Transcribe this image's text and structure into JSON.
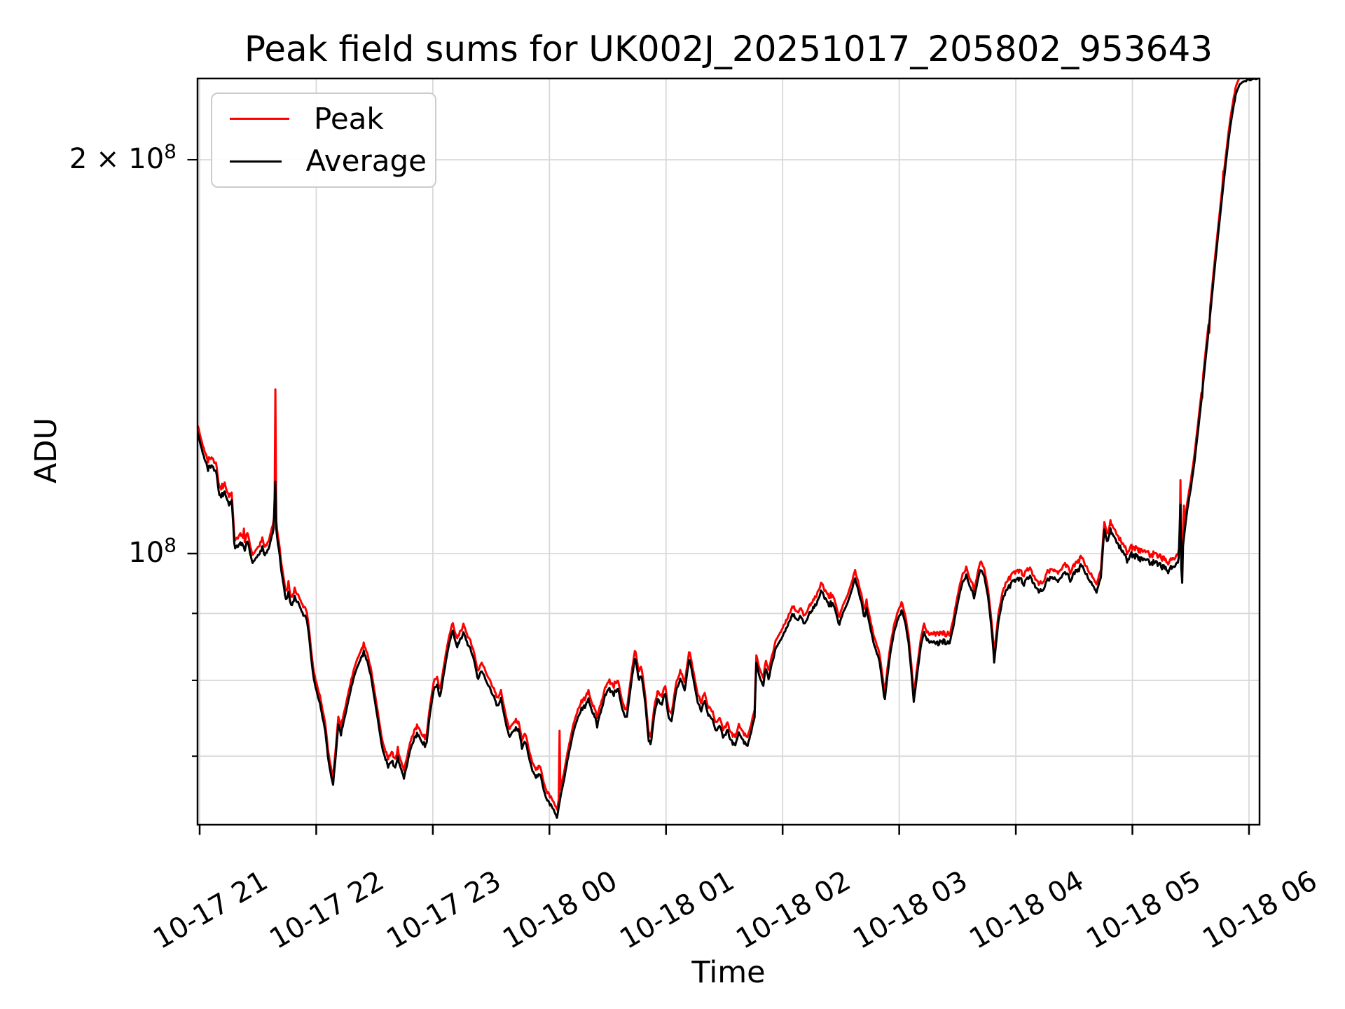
{
  "title": "Peak field sums for UK002J_20251017_205802_953643",
  "xlabel": "Time",
  "ylabel": "ADU",
  "legend": {
    "items": [
      {
        "label": "Peak",
        "color": "#ff0000"
      },
      {
        "label": "Average",
        "color": "#000000"
      }
    ]
  },
  "axes": {
    "x_tick_labels": [
      "10-17 21",
      "10-17 22",
      "10-17 23",
      "10-18 00",
      "10-18 01",
      "10-18 02",
      "10-18 03",
      "10-18 04",
      "10-18 05",
      "10-18 06"
    ],
    "y_ticks": [
      {
        "mantissa": "2 × 10",
        "exponent": "8",
        "value_e7": 20,
        "kind": "minor-labeled"
      },
      {
        "mantissa": "10",
        "exponent": "8",
        "value_e7": 10,
        "kind": "major"
      }
    ],
    "y_minor_ticks_e7": [
      20,
      9,
      8,
      7
    ],
    "y_grid_values_e7": [
      20,
      10,
      9,
      8,
      7
    ],
    "grid_color": "#d9d9d9",
    "spine_color": "#000000",
    "y_scale": "log",
    "y_range_e7": [
      6.22,
      23.1
    ],
    "x_range_hours_from_2100": [
      -0.018,
      9.088
    ]
  },
  "chart_data": {
    "type": "line",
    "title": "Peak field sums for UK002J_20251017_205802_953643",
    "xlabel": "Time",
    "ylabel": "ADU",
    "x_unit": "hours since 2025-10-17 21:00",
    "y_unit": "ADU × 1e7 (log axis, range ~6.2e7 to ~2.31e8)",
    "legend_position": "upper left",
    "grid": "both-axes, major+minor",
    "series": [
      {
        "name": "Peak",
        "color": "#ff0000",
        "relation": "Average multiplied by ~1.012-1.025, drawn beneath Average",
        "spikes_t_v": [
          [
            0.38,
            10.45
          ],
          [
            0.6465,
            13.35
          ],
          [
            3.085,
            7.32
          ],
          [
            8.41,
            11.38
          ],
          [
            8.44,
            10.88
          ],
          [
            8.6,
            13.15
          ],
          [
            8.66,
            14.75
          ],
          [
            8.78,
            19.6
          ]
        ]
      },
      {
        "name": "Average",
        "color": "#000000",
        "spikes_t_v": [
          [
            0.6465,
            11.35
          ],
          [
            8.41,
            10.9
          ],
          [
            8.426,
            9.5
          ]
        ],
        "waypoints_t_v": [
          [
            -0.018,
            12.35
          ],
          [
            0.02,
            12.0
          ],
          [
            0.045,
            11.8
          ],
          [
            0.07,
            11.62
          ],
          [
            0.095,
            11.7
          ],
          [
            0.12,
            11.58
          ],
          [
            0.145,
            11.52
          ],
          [
            0.165,
            11.12
          ],
          [
            0.19,
            11.04
          ],
          [
            0.22,
            11.1
          ],
          [
            0.25,
            10.96
          ],
          [
            0.275,
            11.0
          ],
          [
            0.3,
            10.08
          ],
          [
            0.33,
            10.15
          ],
          [
            0.36,
            10.22
          ],
          [
            0.385,
            10.05
          ],
          [
            0.41,
            10.26
          ],
          [
            0.435,
            9.98
          ],
          [
            0.455,
            9.82
          ],
          [
            0.48,
            9.92
          ],
          [
            0.51,
            10.0
          ],
          [
            0.54,
            10.04
          ],
          [
            0.565,
            9.96
          ],
          [
            0.59,
            10.08
          ],
          [
            0.615,
            10.26
          ],
          [
            0.635,
            10.45
          ],
          [
            0.6465,
            10.7
          ],
          [
            0.658,
            10.42
          ],
          [
            0.67,
            10.2
          ],
          [
            0.685,
            10.0
          ],
          [
            0.7,
            9.7
          ],
          [
            0.72,
            9.45
          ],
          [
            0.74,
            9.2
          ],
          [
            0.765,
            9.25
          ],
          [
            0.79,
            9.12
          ],
          [
            0.815,
            9.25
          ],
          [
            0.84,
            9.2
          ],
          [
            0.865,
            9.1
          ],
          [
            0.89,
            9.0
          ],
          [
            0.915,
            8.95
          ],
          [
            0.935,
            8.7
          ],
          [
            0.955,
            8.35
          ],
          [
            0.975,
            8.05
          ],
          [
            1.0,
            7.85
          ],
          [
            1.03,
            7.7
          ],
          [
            1.055,
            7.48
          ],
          [
            1.075,
            7.35
          ],
          [
            1.1,
            7.0
          ],
          [
            1.125,
            6.78
          ],
          [
            1.145,
            6.67
          ],
          [
            1.17,
            7.05
          ],
          [
            1.19,
            7.42
          ],
          [
            1.21,
            7.3
          ],
          [
            1.23,
            7.4
          ],
          [
            1.26,
            7.62
          ],
          [
            1.3,
            7.9
          ],
          [
            1.34,
            8.12
          ],
          [
            1.38,
            8.3
          ],
          [
            1.41,
            8.38
          ],
          [
            1.44,
            8.25
          ],
          [
            1.47,
            8.05
          ],
          [
            1.5,
            7.75
          ],
          [
            1.53,
            7.45
          ],
          [
            1.56,
            7.15
          ],
          [
            1.59,
            6.98
          ],
          [
            1.62,
            6.88
          ],
          [
            1.65,
            6.94
          ],
          [
            1.675,
            6.84
          ],
          [
            1.7,
            6.96
          ],
          [
            1.725,
            6.85
          ],
          [
            1.75,
            6.73
          ],
          [
            1.78,
            6.9
          ],
          [
            1.81,
            7.1
          ],
          [
            1.84,
            7.22
          ],
          [
            1.875,
            7.3
          ],
          [
            1.91,
            7.18
          ],
          [
            1.945,
            7.15
          ],
          [
            1.975,
            7.55
          ],
          [
            2.005,
            7.85
          ],
          [
            2.035,
            7.95
          ],
          [
            2.06,
            7.75
          ],
          [
            2.095,
            8.1
          ],
          [
            2.13,
            8.45
          ],
          [
            2.17,
            8.73
          ],
          [
            2.205,
            8.5
          ],
          [
            2.24,
            8.6
          ],
          [
            2.265,
            8.7
          ],
          [
            2.3,
            8.52
          ],
          [
            2.33,
            8.42
          ],
          [
            2.36,
            8.25
          ],
          [
            2.385,
            8.02
          ],
          [
            2.415,
            8.15
          ],
          [
            2.445,
            8.05
          ],
          [
            2.48,
            7.95
          ],
          [
            2.52,
            7.8
          ],
          [
            2.55,
            7.65
          ],
          [
            2.585,
            7.75
          ],
          [
            2.625,
            7.42
          ],
          [
            2.66,
            7.22
          ],
          [
            2.7,
            7.3
          ],
          [
            2.735,
            7.35
          ],
          [
            2.765,
            7.1
          ],
          [
            2.795,
            7.18
          ],
          [
            2.83,
            6.95
          ],
          [
            2.86,
            6.8
          ],
          [
            2.89,
            6.72
          ],
          [
            2.92,
            6.8
          ],
          [
            2.95,
            6.6
          ],
          [
            2.98,
            6.48
          ],
          [
            3.01,
            6.42
          ],
          [
            3.04,
            6.34
          ],
          [
            3.065,
            6.29
          ],
          [
            3.095,
            6.52
          ],
          [
            3.13,
            6.75
          ],
          [
            3.165,
            7.02
          ],
          [
            3.2,
            7.28
          ],
          [
            3.235,
            7.45
          ],
          [
            3.27,
            7.6
          ],
          [
            3.305,
            7.66
          ],
          [
            3.34,
            7.68
          ],
          [
            3.375,
            7.55
          ],
          [
            3.41,
            7.42
          ],
          [
            3.445,
            7.58
          ],
          [
            3.48,
            7.8
          ],
          [
            3.52,
            7.87
          ],
          [
            3.555,
            7.83
          ],
          [
            3.59,
            7.9
          ],
          [
            3.625,
            7.6
          ],
          [
            3.66,
            7.45
          ],
          [
            3.7,
            7.95
          ],
          [
            3.735,
            8.35
          ],
          [
            3.765,
            8.02
          ],
          [
            3.79,
            8.06
          ],
          [
            3.82,
            7.72
          ],
          [
            3.85,
            7.2
          ],
          [
            3.87,
            7.15
          ],
          [
            3.9,
            7.55
          ],
          [
            3.93,
            7.76
          ],
          [
            3.96,
            7.64
          ],
          [
            3.99,
            7.86
          ],
          [
            4.02,
            7.52
          ],
          [
            4.05,
            7.46
          ],
          [
            4.09,
            7.9
          ],
          [
            4.125,
            8.02
          ],
          [
            4.16,
            7.86
          ],
          [
            4.2,
            8.32
          ],
          [
            4.235,
            8.02
          ],
          [
            4.27,
            7.72
          ],
          [
            4.3,
            7.62
          ],
          [
            4.33,
            7.73
          ],
          [
            4.36,
            7.52
          ],
          [
            4.4,
            7.46
          ],
          [
            4.43,
            7.27
          ],
          [
            4.46,
            7.42
          ],
          [
            4.49,
            7.22
          ],
          [
            4.525,
            7.32
          ],
          [
            4.56,
            7.18
          ],
          [
            4.59,
            7.13
          ],
          [
            4.625,
            7.3
          ],
          [
            4.66,
            7.2
          ],
          [
            4.7,
            7.14
          ],
          [
            4.73,
            7.3
          ],
          [
            4.76,
            7.5
          ],
          [
            4.775,
            8.28
          ],
          [
            4.8,
            8.05
          ],
          [
            4.835,
            7.95
          ],
          [
            4.855,
            8.2
          ],
          [
            4.88,
            8.02
          ],
          [
            4.91,
            8.25
          ],
          [
            4.94,
            8.45
          ],
          [
            4.97,
            8.55
          ],
          [
            5.0,
            8.65
          ],
          [
            5.03,
            8.75
          ],
          [
            5.065,
            8.92
          ],
          [
            5.09,
            9.0
          ],
          [
            5.12,
            8.86
          ],
          [
            5.155,
            8.96
          ],
          [
            5.19,
            8.82
          ],
          [
            5.23,
            9.02
          ],
          [
            5.27,
            9.12
          ],
          [
            5.305,
            9.22
          ],
          [
            5.33,
            9.37
          ],
          [
            5.39,
            9.15
          ],
          [
            5.43,
            9.18
          ],
          [
            5.485,
            8.83
          ],
          [
            5.56,
            9.2
          ],
          [
            5.62,
            9.55
          ],
          [
            5.68,
            9.15
          ],
          [
            5.7,
            8.9
          ],
          [
            5.72,
            9.05
          ],
          [
            5.78,
            8.55
          ],
          [
            5.83,
            8.3
          ],
          [
            5.875,
            7.72
          ],
          [
            5.92,
            8.35
          ],
          [
            5.96,
            8.75
          ],
          [
            6.0,
            8.95
          ],
          [
            6.025,
            9.02
          ],
          [
            6.05,
            8.88
          ],
          [
            6.08,
            8.55
          ],
          [
            6.105,
            8.1
          ],
          [
            6.125,
            7.7
          ],
          [
            6.155,
            8.1
          ],
          [
            6.185,
            8.5
          ],
          [
            6.21,
            8.68
          ],
          [
            6.24,
            8.6
          ],
          [
            6.27,
            8.5
          ],
          [
            6.3,
            8.58
          ],
          [
            6.335,
            8.52
          ],
          [
            6.37,
            8.6
          ],
          [
            6.4,
            8.55
          ],
          [
            6.43,
            8.52
          ],
          [
            6.46,
            8.75
          ],
          [
            6.5,
            9.15
          ],
          [
            6.54,
            9.5
          ],
          [
            6.575,
            9.63
          ],
          [
            6.61,
            9.4
          ],
          [
            6.645,
            9.28
          ],
          [
            6.675,
            9.55
          ],
          [
            6.7,
            9.78
          ],
          [
            6.73,
            9.6
          ],
          [
            6.76,
            9.3
          ],
          [
            6.79,
            8.8
          ],
          [
            6.815,
            8.28
          ],
          [
            6.85,
            8.85
          ],
          [
            6.89,
            9.25
          ],
          [
            6.93,
            9.4
          ],
          [
            6.97,
            9.48
          ],
          [
            7.02,
            9.58
          ],
          [
            7.07,
            9.48
          ],
          [
            7.12,
            9.58
          ],
          [
            7.17,
            9.43
          ],
          [
            7.22,
            9.38
          ],
          [
            7.27,
            9.53
          ],
          [
            7.32,
            9.62
          ],
          [
            7.37,
            9.52
          ],
          [
            7.42,
            9.67
          ],
          [
            7.47,
            9.57
          ],
          [
            7.52,
            9.72
          ],
          [
            7.565,
            9.78
          ],
          [
            7.61,
            9.63
          ],
          [
            7.655,
            9.48
          ],
          [
            7.69,
            9.35
          ],
          [
            7.73,
            9.6
          ],
          [
            7.76,
            10.45
          ],
          [
            7.785,
            10.2
          ],
          [
            7.81,
            10.42
          ],
          [
            7.845,
            10.3
          ],
          [
            7.88,
            10.15
          ],
          [
            7.92,
            10.05
          ],
          [
            7.955,
            9.9
          ],
          [
            7.99,
            10.0
          ],
          [
            8.03,
            9.97
          ],
          [
            8.07,
            9.88
          ],
          [
            8.11,
            9.93
          ],
          [
            8.15,
            9.83
          ],
          [
            8.19,
            9.88
          ],
          [
            8.23,
            9.8
          ],
          [
            8.27,
            9.75
          ],
          [
            8.31,
            9.7
          ],
          [
            8.35,
            9.75
          ],
          [
            8.39,
            9.85
          ],
          [
            8.4,
            9.95
          ],
          [
            8.415,
            9.95
          ],
          [
            8.43,
            10.05
          ],
          [
            8.445,
            10.35
          ],
          [
            8.47,
            10.8
          ],
          [
            8.5,
            11.2
          ],
          [
            8.53,
            11.7
          ],
          [
            8.56,
            12.35
          ],
          [
            8.59,
            13.05
          ],
          [
            8.62,
            13.85
          ],
          [
            8.65,
            14.7
          ],
          [
            8.68,
            15.65
          ],
          [
            8.71,
            16.65
          ],
          [
            8.74,
            17.7
          ],
          [
            8.77,
            18.75
          ],
          [
            8.8,
            19.85
          ],
          [
            8.83,
            20.9
          ],
          [
            8.86,
            21.8
          ],
          [
            8.89,
            22.5
          ],
          [
            8.92,
            22.85
          ],
          [
            8.96,
            23.0
          ],
          [
            9.02,
            23.05
          ],
          [
            9.088,
            23.07
          ]
        ]
      }
    ]
  }
}
